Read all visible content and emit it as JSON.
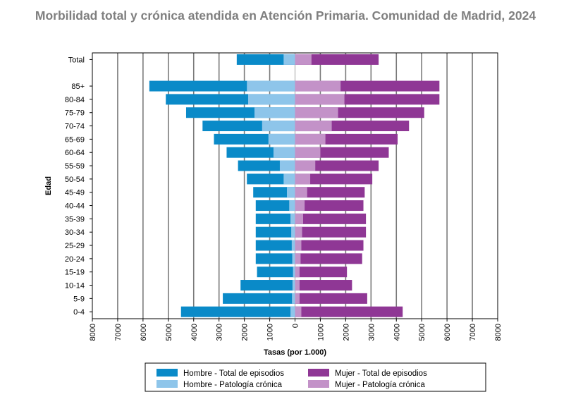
{
  "chart_data": {
    "type": "bar",
    "orientation": "horizontal",
    "layout": "population-pyramid",
    "title": "Morbilidad total y crónica atendida en Atención Primaria. Comunidad de Madrid, 2024",
    "xlabel": "Tasas (por 1.000)",
    "ylabel": "Edad",
    "xlim": [
      -8000,
      8000
    ],
    "x_ticks": [
      -8000,
      -7000,
      -6000,
      -5000,
      -4000,
      -3000,
      -2000,
      -1000,
      0,
      1000,
      2000,
      3000,
      4000,
      5000,
      6000,
      7000,
      8000
    ],
    "x_tick_labels": [
      "8000",
      "7000",
      "6000",
      "5000",
      "4000",
      "3000",
      "2000",
      "1000",
      "0",
      "1000",
      "2000",
      "3000",
      "4000",
      "5000",
      "6000",
      "7000",
      "8000"
    ],
    "grid": true,
    "legend_position": "bottom",
    "categories": [
      "Total",
      "85+",
      "80-84",
      "75-79",
      "70-74",
      "65-69",
      "60-64",
      "55-59",
      "50-54",
      "45-49",
      "40-44",
      "35-39",
      "30-34",
      "25-29",
      "20-24",
      "15-19",
      "10-14",
      "5-9",
      "0-4"
    ],
    "series": [
      {
        "name": "Hombre - Total de episodios",
        "side": "left",
        "color": "#0a8ac8",
        "values": [
          2300,
          5750,
          5100,
          4300,
          3650,
          3200,
          2700,
          2250,
          1900,
          1650,
          1550,
          1550,
          1550,
          1550,
          1550,
          1500,
          2150,
          2850,
          4500
        ]
      },
      {
        "name": "Hombre - Patología crónica",
        "side": "left",
        "color": "#8ec5ea",
        "values": [
          450,
          1900,
          1850,
          1600,
          1300,
          1050,
          850,
          600,
          450,
          320,
          230,
          180,
          150,
          130,
          110,
          80,
          100,
          120,
          180
        ]
      },
      {
        "name": "Mujer - Total de episodios",
        "side": "right",
        "color": "#8f3795",
        "values": [
          3300,
          5700,
          5700,
          5100,
          4500,
          4050,
          3700,
          3300,
          3050,
          2750,
          2700,
          2800,
          2800,
          2700,
          2650,
          2050,
          2250,
          2850,
          4250
        ]
      },
      {
        "name": "Mujer - Patología crónica",
        "side": "right",
        "color": "#c392c8",
        "values": [
          650,
          1800,
          1950,
          1700,
          1450,
          1200,
          1000,
          800,
          600,
          480,
          380,
          320,
          280,
          250,
          220,
          180,
          180,
          180,
          250
        ]
      }
    ]
  }
}
